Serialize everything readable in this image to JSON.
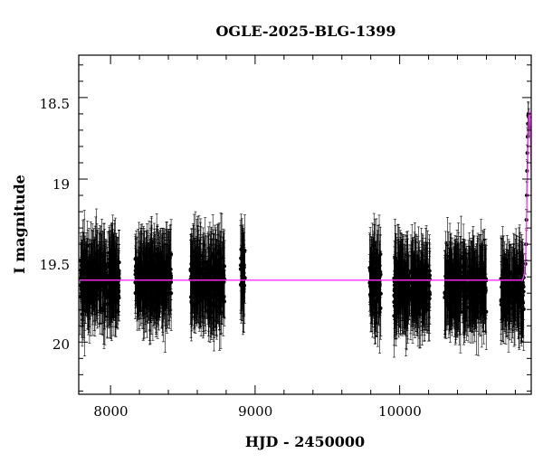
{
  "chart_data": {
    "type": "scatter",
    "title": "OGLE-2025-BLG-1399",
    "xlabel": "HJD - 2450000",
    "ylabel": "I magnitude",
    "xlim": [
      7780,
      10910
    ],
    "ylim": [
      20.32,
      18.24
    ],
    "y_inverted": true,
    "x_ticks": [
      8000,
      9000,
      10000
    ],
    "y_ticks": [
      18.5,
      19,
      19.5,
      20
    ],
    "x_tick_labels": [
      "8000",
      "9000",
      "10000"
    ],
    "y_tick_labels": [
      "18.5",
      "19",
      "19.5",
      "20"
    ],
    "grid": false,
    "baseline_mag": 19.62,
    "colors": {
      "data": "#000000",
      "model": "#ff33ff"
    },
    "seasons": [
      {
        "x_start": 7790,
        "x_end": 8060,
        "mean_mag": 19.62,
        "scatter": 0.13
      },
      {
        "x_start": 8170,
        "x_end": 8420,
        "mean_mag": 19.61,
        "scatter": 0.12
      },
      {
        "x_start": 8550,
        "x_end": 8790,
        "mean_mag": 19.62,
        "scatter": 0.13
      },
      {
        "x_start": 8900,
        "x_end": 8930,
        "mean_mag": 19.58,
        "scatter": 0.12
      },
      {
        "x_start": 9790,
        "x_end": 9870,
        "mean_mag": 19.63,
        "scatter": 0.16
      },
      {
        "x_start": 9960,
        "x_end": 10210,
        "mean_mag": 19.66,
        "scatter": 0.11
      },
      {
        "x_start": 10310,
        "x_end": 10600,
        "mean_mag": 19.66,
        "scatter": 0.11
      },
      {
        "x_start": 10700,
        "x_end": 10860,
        "mean_mag": 19.68,
        "scatter": 0.1
      }
    ],
    "event": [
      {
        "x": 10870,
        "y": 19.52
      },
      {
        "x": 10874,
        "y": 19.4
      },
      {
        "x": 10877,
        "y": 19.25
      },
      {
        "x": 10879,
        "y": 19.1
      },
      {
        "x": 10881,
        "y": 18.95
      },
      {
        "x": 10883,
        "y": 18.84
      },
      {
        "x": 10885,
        "y": 18.74
      },
      {
        "x": 10887,
        "y": 18.66
      },
      {
        "x": 10889,
        "y": 18.61
      },
      {
        "x": 10891,
        "y": 18.6
      },
      {
        "x": 10893,
        "y": 18.62
      },
      {
        "x": 10895,
        "y": 18.68
      }
    ],
    "model_curve": [
      {
        "x": 7780,
        "y": 19.62
      },
      {
        "x": 10850,
        "y": 19.62
      },
      {
        "x": 10862,
        "y": 19.58
      },
      {
        "x": 10870,
        "y": 19.5
      },
      {
        "x": 10876,
        "y": 19.35
      },
      {
        "x": 10880,
        "y": 19.15
      },
      {
        "x": 10884,
        "y": 18.95
      },
      {
        "x": 10888,
        "y": 18.75
      },
      {
        "x": 10892,
        "y": 18.62
      },
      {
        "x": 10896,
        "y": 18.58
      },
      {
        "x": 10900,
        "y": 18.62
      },
      {
        "x": 10906,
        "y": 18.78
      },
      {
        "x": 10910,
        "y": 18.95
      }
    ]
  }
}
